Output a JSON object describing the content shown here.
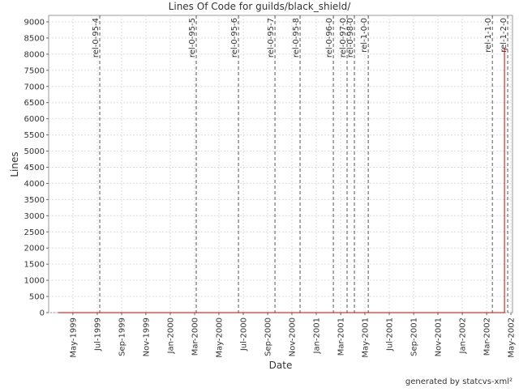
{
  "chart_data": {
    "type": "line",
    "title": "Lines Of Code for guilds/black_shield/",
    "x_label": "Date",
    "y_label": "Lines",
    "color": "#cc0000",
    "grid": true,
    "x": [
      1999.233,
      2002.289,
      2002.289,
      2002.311
    ],
    "values": [
      0,
      0,
      8150,
      8150
    ],
    "xlim": [
      1999.167,
      2002.344
    ],
    "ylim": [
      0,
      9200
    ],
    "xticks": [
      {
        "value": 1999.333,
        "label": "May-1999"
      },
      {
        "value": 1999.5,
        "label": "Jul-1999"
      },
      {
        "value": 1999.667,
        "label": "Sep-1999"
      },
      {
        "value": 1999.833,
        "label": "Nov-1999"
      },
      {
        "value": 2000.0,
        "label": "Jan-2000"
      },
      {
        "value": 2000.167,
        "label": "Mar-2000"
      },
      {
        "value": 2000.333,
        "label": "May-2000"
      },
      {
        "value": 2000.5,
        "label": "Jul-2000"
      },
      {
        "value": 2000.667,
        "label": "Sep-2000"
      },
      {
        "value": 2000.833,
        "label": "Nov-2000"
      },
      {
        "value": 2001.0,
        "label": "Jan-2001"
      },
      {
        "value": 2001.167,
        "label": "Mar-2001"
      },
      {
        "value": 2001.333,
        "label": "May-2001"
      },
      {
        "value": 2001.5,
        "label": "Jul-2001"
      },
      {
        "value": 2001.667,
        "label": "Sep-2001"
      },
      {
        "value": 2001.833,
        "label": "Nov-2001"
      },
      {
        "value": 2002.0,
        "label": "Jan-2002"
      },
      {
        "value": 2002.167,
        "label": "Mar-2002"
      },
      {
        "value": 2002.333,
        "label": "May-2002"
      }
    ],
    "yticks": [
      0,
      500,
      1000,
      1500,
      2000,
      2500,
      3000,
      3500,
      4000,
      4500,
      5000,
      5500,
      6000,
      6500,
      7000,
      7500,
      8000,
      8500,
      9000
    ],
    "markers": [
      {
        "x": 1999.517,
        "label": "rel-0-95-4"
      },
      {
        "x": 2000.178,
        "label": "rel-0-95-5"
      },
      {
        "x": 2000.467,
        "label": "rel-0-95-6"
      },
      {
        "x": 2000.717,
        "label": "rel-0-95-7"
      },
      {
        "x": 2000.889,
        "label": "rel-0-95-8"
      },
      {
        "x": 2001.117,
        "label": "rel-0-96-0"
      },
      {
        "x": 2001.211,
        "label": "rel-0-97-0"
      },
      {
        "x": 2001.261,
        "label": "rel-0-98-0"
      },
      {
        "x": 2001.356,
        "label": "rel-1-0-0"
      },
      {
        "x": 2002.206,
        "label": "rel-1-1-0"
      },
      {
        "x": 2002.311,
        "label": "rel-1-2-0"
      }
    ]
  },
  "footer": "generated by statcvs-xml²"
}
